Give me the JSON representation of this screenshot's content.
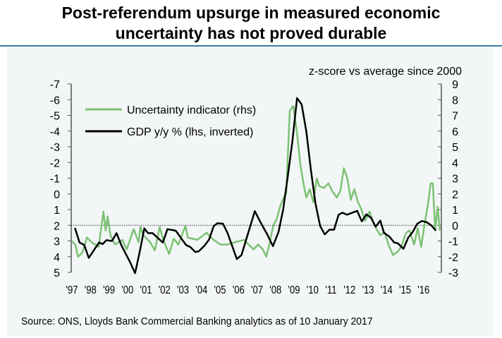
{
  "title_lines": [
    "Post-referendum upsurge in measured economic",
    "uncertainty has not proved durable"
  ],
  "source": "Source: ONS, Lloyds Bank Commercial Banking analytics as of 10 January 2017",
  "colors": {
    "uncertainty": "#7cc274",
    "gdp": "#000000",
    "rule": "#3b7ea1",
    "panel": "#f3f6f6"
  },
  "chart_data": {
    "type": "line",
    "title": "Post-referendum upsurge in measured economic uncertainty has not proved durable",
    "units_label": "z-score vs average since 2000",
    "x_tick_labels": [
      "'97",
      "'98",
      "'99",
      "'00",
      "'01",
      "'02",
      "'03",
      "'04",
      "'05",
      "'06",
      "'07",
      "'08",
      "'09",
      "'10",
      "'11",
      "'12",
      "'13",
      "'14",
      "'15",
      "'16"
    ],
    "x_range": [
      1997,
      2017
    ],
    "left_axis": {
      "ylim": [
        -7,
        5
      ],
      "inverted": true,
      "ticks": [
        -7,
        -6,
        -5,
        -4,
        -3,
        -2,
        -1,
        0,
        1,
        2,
        3,
        4,
        5
      ]
    },
    "right_axis": {
      "ylim": [
        -3,
        9
      ],
      "ticks": [
        9,
        8,
        7,
        6,
        5,
        4,
        3,
        2,
        1,
        0,
        -1,
        -2,
        -3
      ]
    },
    "reference_line": {
      "axis": "right",
      "value": 0,
      "style": "dotted"
    },
    "legend": {
      "placement": "top-left"
    },
    "grid": false,
    "series": [
      {
        "name": "Uncertainty indicator (rhs)",
        "axis": "right",
        "x": [
          1997.03,
          1997.22,
          1997.37,
          1997.6,
          1997.85,
          1998.1,
          1998.48,
          1998.74,
          1998.86,
          1998.97,
          1999.12,
          1999.37,
          1999.75,
          2000.0,
          2000.26,
          2000.38,
          2000.64,
          2000.74,
          2000.89,
          2001.27,
          2001.52,
          2001.78,
          2001.97,
          2002.29,
          2002.54,
          2002.79,
          2003.17,
          2003.3,
          2003.81,
          2004.31,
          2004.69,
          2005.07,
          2005.45,
          2005.83,
          2006.34,
          2006.59,
          2006.85,
          2007.1,
          2007.35,
          2007.54,
          2007.73,
          2007.92,
          2008.11,
          2008.3,
          2008.49,
          2008.62,
          2008.81,
          2009.0,
          2009.19,
          2009.38,
          2009.57,
          2009.7,
          2009.89,
          2010.08,
          2010.27,
          2010.4,
          2010.65,
          2010.9,
          2011.09,
          2011.35,
          2011.54,
          2011.73,
          2011.92,
          2012.11,
          2012.3,
          2012.49,
          2012.68,
          2012.87,
          2013.12,
          2013.38,
          2013.69,
          2013.95,
          2014.14,
          2014.39,
          2014.64,
          2014.83,
          2015.09,
          2015.28,
          2015.53,
          2015.72,
          2015.91,
          2016.1,
          2016.29,
          2016.42,
          2016.54,
          2016.67,
          2016.8,
          2016.92
        ],
        "values": [
          -1.0,
          -1.23,
          -2.0,
          -1.75,
          -0.78,
          -1.08,
          -1.38,
          0.87,
          -0.33,
          0.57,
          -0.63,
          -1.23,
          -0.93,
          -1.53,
          -0.63,
          -0.25,
          -1.08,
          -0.1,
          -0.63,
          -1.08,
          -1.6,
          -0.1,
          -0.93,
          -1.83,
          -0.85,
          -1.23,
          -0.03,
          -0.78,
          -0.93,
          -0.48,
          -0.93,
          -1.23,
          -1.23,
          -1.08,
          -0.93,
          -1.23,
          -1.53,
          -1.23,
          -1.53,
          -2.0,
          -1.08,
          0.0,
          0.42,
          1.24,
          1.77,
          2.07,
          7.3,
          7.6,
          5.97,
          3.87,
          2.5,
          1.77,
          2.3,
          1.47,
          2.97,
          2.5,
          2.37,
          2.67,
          2.2,
          1.77,
          2.2,
          3.64,
          2.97,
          1.62,
          2.3,
          1.47,
          1.02,
          0.27,
          0.87,
          0.0,
          -0.63,
          -0.48,
          -1.23,
          -1.9,
          -1.68,
          -1.38,
          -0.48,
          -0.33,
          -1.23,
          -0.18,
          -1.38,
          0.12,
          1.47,
          2.67,
          2.67,
          -0.33,
          1.17,
          -0.33
        ]
      },
      {
        "name": "GDP y/y % (lhs, inverted)",
        "axis": "left",
        "x": [
          1997.2,
          1997.45,
          1997.7,
          1997.95,
          1998.5,
          1998.7,
          1998.9,
          1999.2,
          1999.45,
          1999.7,
          2000.2,
          2000.45,
          2000.7,
          2000.95,
          2001.15,
          2001.4,
          2001.95,
          2002.2,
          2002.45,
          2002.65,
          2003.2,
          2003.45,
          2003.7,
          2003.9,
          2004.2,
          2004.45,
          2004.7,
          2004.9,
          2005.2,
          2005.45,
          2005.95,
          2006.2,
          2006.92,
          2007.2,
          2007.6,
          2007.9,
          2008.2,
          2008.45,
          2008.7,
          2008.95,
          2009.2,
          2009.45,
          2009.7,
          2009.95,
          2010.2,
          2010.45,
          2010.7,
          2010.95,
          2011.2,
          2011.45,
          2011.65,
          2011.9,
          2012.45,
          2012.7,
          2012.95,
          2013.2,
          2013.45,
          2013.7,
          2013.9,
          2014.2,
          2014.45,
          2014.65,
          2014.95,
          2015.2,
          2015.45,
          2015.7,
          2015.95,
          2016.2,
          2016.45,
          2016.7
        ],
        "values": [
          2.17,
          3.1,
          3.25,
          4.08,
          3.1,
          3.2,
          2.95,
          3.0,
          2.5,
          3.25,
          4.4,
          5.05,
          3.7,
          2.2,
          2.5,
          2.5,
          3.1,
          2.25,
          2.3,
          2.35,
          3.25,
          3.4,
          3.7,
          3.65,
          3.3,
          2.9,
          2.05,
          1.87,
          1.9,
          2.5,
          4.15,
          3.9,
          1.1,
          1.75,
          2.6,
          3.33,
          2.43,
          1.0,
          -1.1,
          -3.35,
          -6.1,
          -5.7,
          -4.0,
          -1.55,
          0.63,
          2.05,
          2.58,
          2.28,
          2.28,
          1.33,
          1.2,
          1.33,
          1.08,
          1.75,
          1.3,
          1.53,
          2.09,
          1.7,
          2.48,
          2.73,
          3.1,
          3.15,
          3.5,
          2.8,
          2.43,
          1.9,
          1.73,
          1.8,
          2.0,
          2.33
        ]
      }
    ]
  }
}
